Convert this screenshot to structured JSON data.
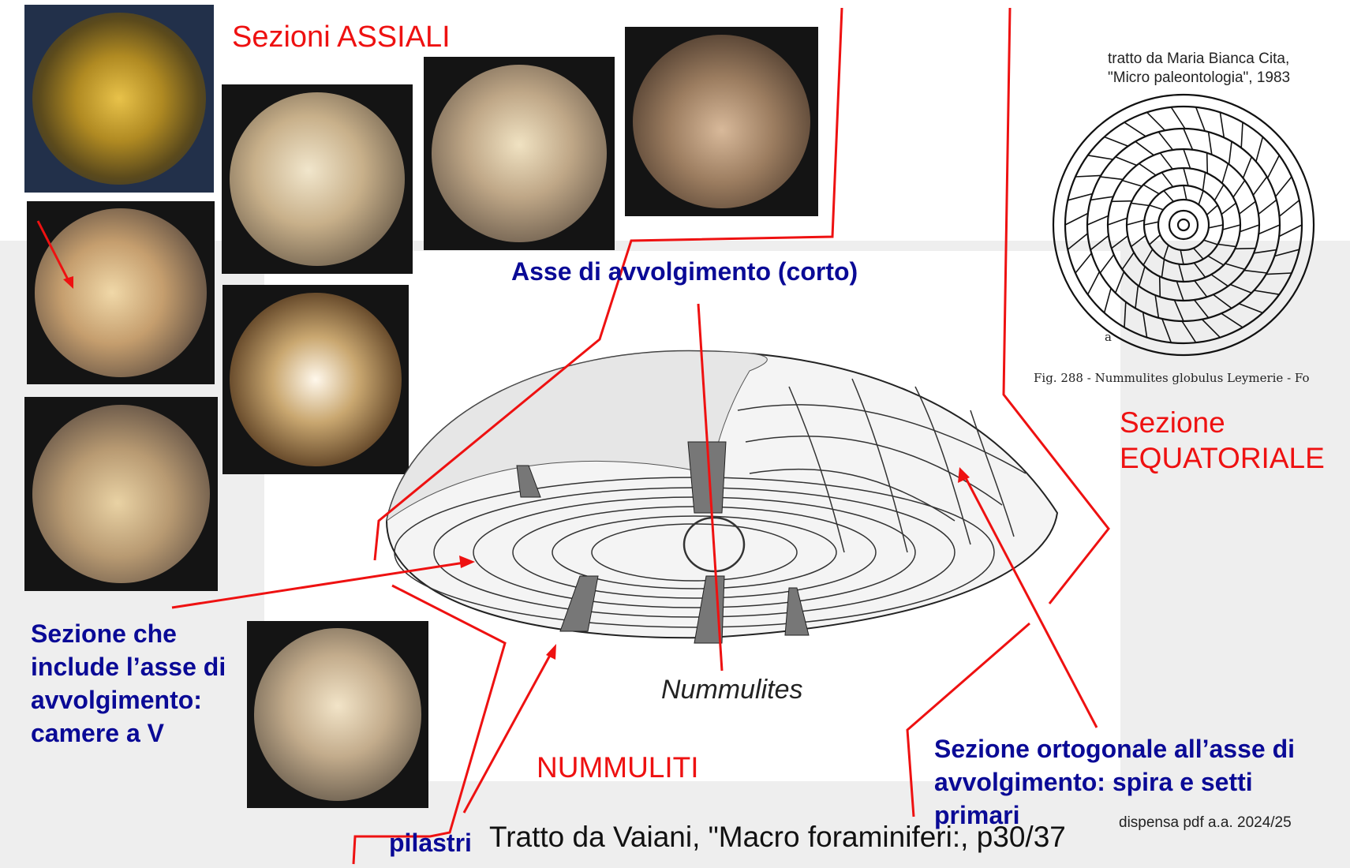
{
  "labels": {
    "sezioni_assiali": "Sezioni ASSIALI",
    "asse_avvolgimento": "Asse di avvolgimento (corto)",
    "sezione": "Sezione",
    "equatoriale": "EQUATORIALE",
    "sezione_che_1": "Sezione che",
    "sezione_che_2": "include l’asse di",
    "sezione_che_3": "avvolgimento:",
    "sezione_che_4": "camere a V",
    "nummuliti": "NUMMULITI",
    "pilastri": "pilastri",
    "ortogonale_1": "Sezione ortogonale all’asse di",
    "ortogonale_2": "avvolgimento: spira e setti",
    "ortogonale_3": "primari",
    "nummulites": "Nummulites"
  },
  "credits": {
    "cita_1": "tratto da Maria Bianca Cita,",
    "cita_2": "\"Micro paleontologia\", 1983",
    "fig_caption": "Fig. 288 - Nummulites globulus Leymerie - Fo",
    "fig_letter": "a",
    "vaiani": "Tratto da Vaiani, \"Macro foraminiferi:, p30/37",
    "dispensa": "dispensa pdf a.a. 2024/25"
  },
  "colors": {
    "red": "#ee1111",
    "blue": "#0a0a96",
    "gray_bg": "#eeeeee"
  }
}
